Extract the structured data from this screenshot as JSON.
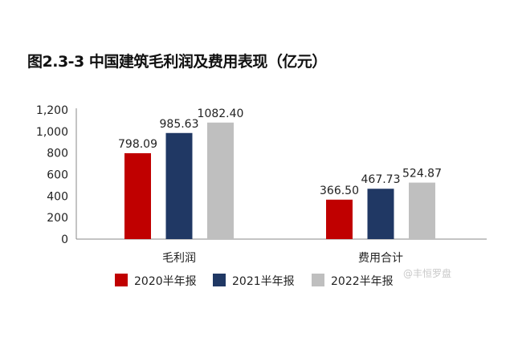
{
  "chart_data": {
    "type": "bar",
    "title": "图2.3-3 中国建筑毛利润及费用表现（亿元）",
    "categories": [
      "毛利润",
      "费用合计"
    ],
    "series": [
      {
        "name": "2020半年报",
        "values": [
          798.09,
          366.5
        ],
        "labels": [
          "798.09",
          "366.50"
        ],
        "color": "#C00000"
      },
      {
        "name": "2021半年报",
        "values": [
          985.63,
          467.73
        ],
        "labels": [
          "985.63",
          "467.73"
        ],
        "color": "#203864"
      },
      {
        "name": "2022半年报",
        "values": [
          1082.4,
          524.87
        ],
        "labels": [
          "1082.40",
          "524.87"
        ],
        "color": "#BFBFBF"
      }
    ],
    "yticks": [
      "0",
      "200",
      "400",
      "600",
      "800",
      "1,000",
      "1,200"
    ],
    "ylim": [
      0,
      1200
    ],
    "grid": false,
    "legend": "bottom"
  },
  "watermark": "@丰恒罗盘"
}
